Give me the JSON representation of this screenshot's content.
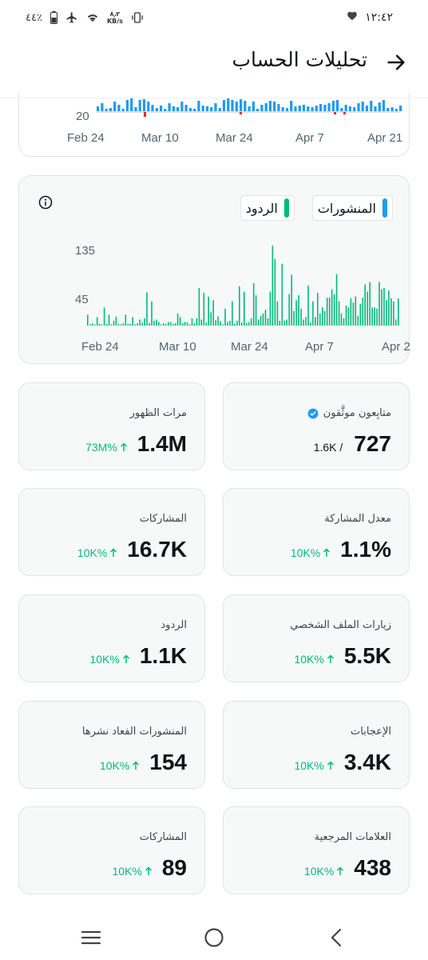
{
  "status_bar": {
    "time": "١٢:٤٢",
    "battery": "٤٤٪",
    "net_speed_value": "٨٫٢",
    "net_speed_unit": "KB/s"
  },
  "header": {
    "title": "تحليلات الحساب"
  },
  "top_chart": {
    "y_label": "20",
    "x_labels": [
      "Feb 24",
      "Mar 10",
      "Mar 24",
      "Apr 7",
      "Apr 21"
    ]
  },
  "posts_chart": {
    "legend": [
      {
        "label": "المنشورات",
        "color": "#1d9bf0"
      },
      {
        "label": "الردود",
        "color": "#00ba7c"
      }
    ]
  },
  "chart_data": {
    "type": "bar",
    "legend_position": "top-right",
    "grid": false,
    "x_labels": [
      "Feb 24",
      "Mar 10",
      "Mar 24",
      "Apr 7",
      "Apr 21"
    ],
    "y_ticks": [
      45,
      135
    ],
    "ylim": [
      0,
      150
    ],
    "series": [
      {
        "name": "الردود",
        "color": "#00ba7c",
        "values": [
          18,
          2,
          4,
          2,
          14,
          3,
          2,
          30,
          3,
          18,
          2,
          8,
          15,
          3,
          2,
          4,
          18,
          3,
          3,
          14,
          2,
          4,
          10,
          5,
          12,
          55,
          4,
          40,
          8,
          10,
          6,
          2,
          4,
          3,
          6,
          6,
          3,
          4,
          20,
          14,
          4,
          6,
          5,
          2,
          12,
          4,
          12,
          62,
          10,
          54,
          5,
          48,
          22,
          42,
          9,
          15,
          7,
          2,
          28,
          6,
          8,
          40,
          3,
          8,
          65,
          5,
          56,
          4,
          6,
          12,
          70,
          50,
          10,
          16,
          20,
          26,
          12,
          56,
          132,
          110,
          40,
          8,
          102,
          8,
          10,
          52,
          84,
          24,
          42,
          50,
          28,
          10,
          14,
          66,
          5,
          40,
          14,
          54,
          20,
          30,
          24,
          46,
          46,
          60,
          52,
          85,
          40,
          20,
          12,
          33,
          30,
          45,
          38,
          48,
          16,
          36,
          46,
          68,
          56,
          72,
          30,
          30,
          28,
          72,
          60,
          62,
          42,
          58,
          45,
          40,
          10,
          45
        ]
      }
    ]
  },
  "stats": [
    {
      "id": "verified-followers",
      "label": "متابِعون موثَّقون",
      "value": "727",
      "sub": "1.6K /",
      "verified": true
    },
    {
      "id": "impressions",
      "label": "مرات الظهور",
      "value": "1.4M",
      "change": "73M%"
    },
    {
      "id": "engagement-rate",
      "label": "معدل المشاركة",
      "value": "1.1%",
      "change": "10K%"
    },
    {
      "id": "engagements",
      "label": "المشاركات",
      "value": "16.7K",
      "change": "10K%"
    },
    {
      "id": "profile-visits",
      "label": "زيارات الملف الشخصي",
      "value": "5.5K",
      "change": "10K%"
    },
    {
      "id": "replies",
      "label": "الردود",
      "value": "1.1K",
      "change": "10K%"
    },
    {
      "id": "likes",
      "label": "الإعجابات",
      "value": "3.4K",
      "change": "10K%"
    },
    {
      "id": "reposts",
      "label": "المنشورات الفعاد نشرها",
      "value": "154",
      "change": "10K%"
    },
    {
      "id": "bookmarks",
      "label": "العلامات المرجعية",
      "value": "438",
      "change": "10K%"
    },
    {
      "id": "shares",
      "label": "المشاركات",
      "value": "89",
      "change": "10K%"
    }
  ]
}
